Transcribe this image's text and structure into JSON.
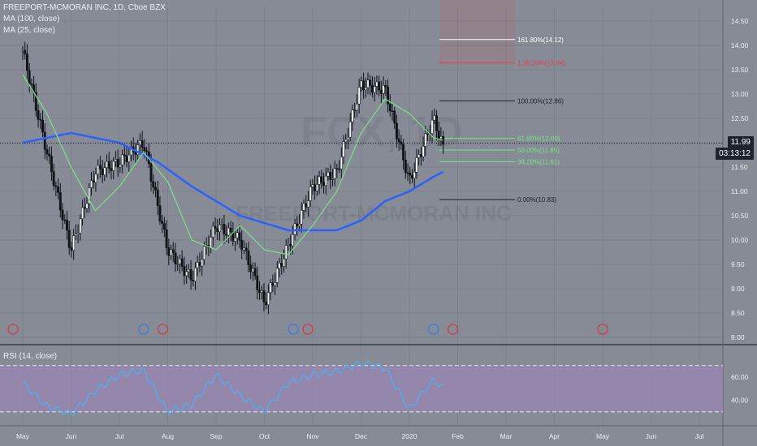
{
  "symbol_title": "FREEPORT-MCMORAN INC, 1D, Cboe BZX",
  "legend": [
    "MA (100, close)",
    "MA (25, close)"
  ],
  "rsi_label": "RSI (14, close)",
  "watermark": {
    "ticker": "FCX, 1D",
    "name": "FREEPORT-MCMORAN INC"
  },
  "last_price_tag": "11.99",
  "countdown_tag": "03:13:12",
  "colors": {
    "background": "#868b96",
    "candle": "#101318",
    "ma100": "#2962ff",
    "ma25": "#7fe08a",
    "rsi": "#3fb6ff",
    "rsi_band": "#9a86b3",
    "fib_white": "#ffffff",
    "fib_red": "#e5414d",
    "fib_green": "#7be38a",
    "event_red": "#d43a44",
    "event_blue": "#3b7de0"
  },
  "icons": [
    "dividend-event-icon",
    "earnings-event-icon"
  ],
  "chart_data": [
    {
      "type": "line",
      "title": "FREEPORT-MCMORAN INC, 1D, Cboe BZX",
      "x_ticks": [
        "May",
        "Jun",
        "Jul",
        "Aug",
        "Sep",
        "Oct",
        "Nov",
        "Dec",
        "2020",
        "Feb",
        "Mar",
        "Apr",
        "May",
        "Jun",
        "Jul"
      ],
      "y_ticks": [
        8.0,
        8.5,
        9.0,
        9.5,
        10.0,
        10.5,
        11.0,
        11.5,
        12.0,
        12.5,
        13.0,
        13.5,
        14.0,
        14.5
      ],
      "ylim": [
        7.85,
        14.8
      ],
      "price_series": {
        "name": "FCX close (approx.)",
        "months": [
          0,
          0.5,
          1,
          1.5,
          2,
          2.5,
          3,
          3.5,
          4,
          4.5,
          5,
          5.5,
          6,
          6.5,
          7,
          7.5,
          8,
          8.5,
          8.7
        ],
        "values": [
          13.9,
          11.8,
          9.8,
          11.4,
          11.6,
          12.0,
          9.8,
          9.2,
          10.3,
          10.0,
          8.7,
          9.9,
          11.1,
          11.4,
          13.2,
          13.1,
          11.2,
          12.5,
          11.9
        ]
      },
      "series": [
        {
          "name": "MA (100, close)",
          "months": [
            0,
            1,
            2,
            2.8,
            3.5,
            4.5,
            5.5,
            6.5,
            7,
            7.5,
            8,
            8.5,
            8.7
          ],
          "values": [
            12.0,
            12.2,
            12.0,
            11.6,
            11.1,
            10.5,
            10.2,
            10.2,
            10.4,
            10.8,
            11.0,
            11.3,
            11.4
          ]
        },
        {
          "name": "MA (25, close)",
          "months": [
            0,
            0.5,
            1,
            1.5,
            2,
            2.5,
            3,
            3.5,
            4,
            4.5,
            5,
            5.5,
            6,
            6.5,
            7,
            7.5,
            8,
            8.5,
            8.7
          ],
          "values": [
            13.4,
            12.6,
            11.5,
            10.6,
            11.1,
            11.8,
            11.2,
            10.0,
            9.8,
            10.3,
            9.8,
            9.7,
            10.3,
            11.0,
            12.2,
            12.9,
            12.6,
            12.1,
            12.05
          ]
        }
      ],
      "fibonacci": [
        {
          "label": "161.80%(14.12)",
          "value": 14.12
        },
        {
          "label": "1.38.20%(13.64)",
          "value": 13.64
        },
        {
          "label": "100.00%(12.86)",
          "value": 12.86
        },
        {
          "label": "61.80%(12.09)",
          "value": 12.09
        },
        {
          "label": "50.00%(11.85)",
          "value": 11.85
        },
        {
          "label": "38.20%(11.61)",
          "value": 11.61
        },
        {
          "label": "0.00%(10.83)",
          "value": 10.83
        }
      ],
      "last_price": 11.99,
      "events": [
        {
          "type": "dividend",
          "month": -0.2
        },
        {
          "type": "earnings",
          "month": 2.5
        },
        {
          "type": "dividend",
          "month": 2.9
        },
        {
          "type": "earnings",
          "month": 5.6
        },
        {
          "type": "dividend",
          "month": 5.9
        },
        {
          "type": "earnings",
          "month": 8.5
        },
        {
          "type": "dividend",
          "month": 8.9
        },
        {
          "type": "dividend",
          "month": 12.0
        }
      ]
    },
    {
      "type": "line",
      "title": "RSI (14, close)",
      "y_ticks": [
        40.0,
        60.0
      ],
      "ylim": [
        18,
        88
      ],
      "bands": [
        30,
        70
      ],
      "series": [
        {
          "name": "RSI (14, close)",
          "months": [
            0,
            0.5,
            1,
            1.5,
            2,
            2.5,
            3,
            3.5,
            4,
            4.5,
            5,
            5.5,
            6,
            6.5,
            7,
            7.5,
            8,
            8.5,
            8.7
          ],
          "values": [
            55,
            35,
            28,
            48,
            62,
            66,
            30,
            36,
            62,
            44,
            30,
            55,
            62,
            65,
            72,
            68,
            32,
            58,
            50
          ]
        }
      ]
    }
  ]
}
